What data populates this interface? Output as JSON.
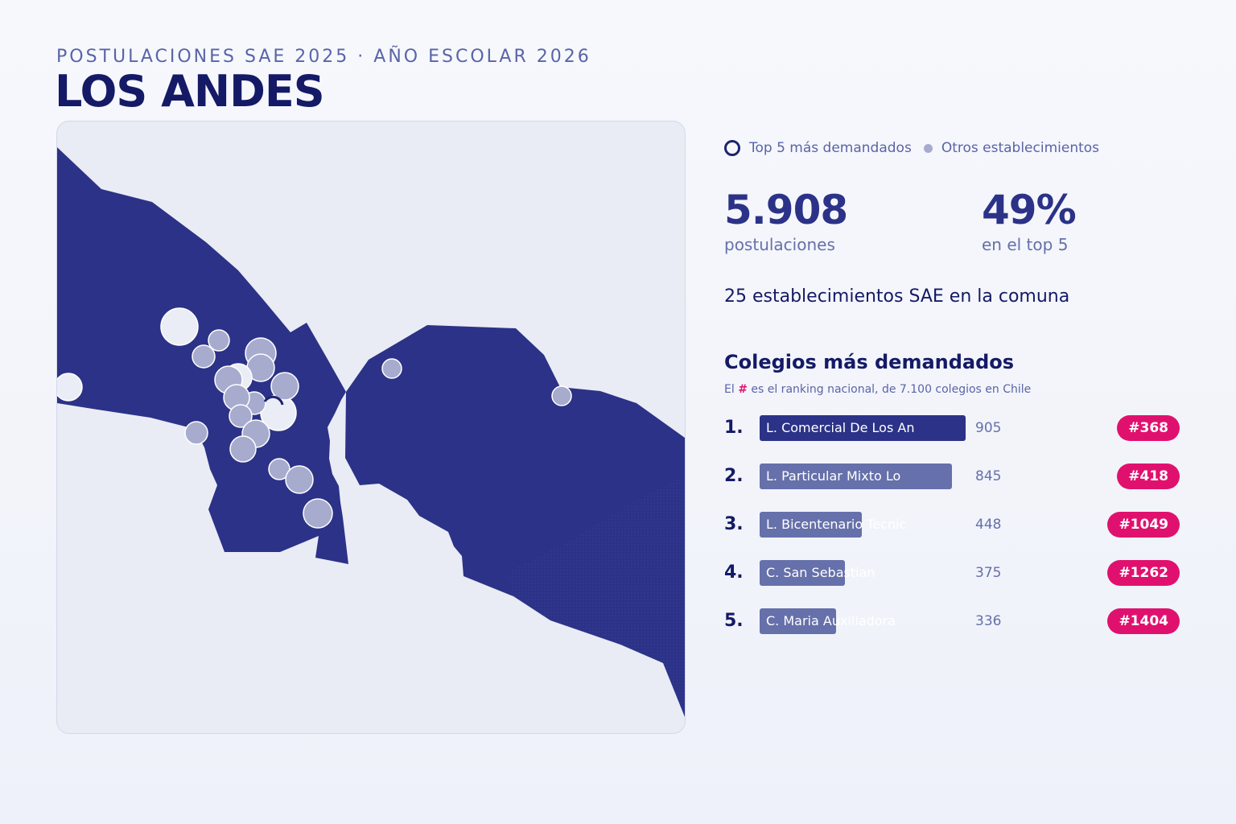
{
  "header": {
    "kicker": "POSTULACIONES SAE 2025 · AÑO ESCOLAR 2026",
    "title": "LOS ANDES"
  },
  "legend": {
    "top5_label": "Top 5 más demandados",
    "others_label": "Otros establecimientos"
  },
  "stats": {
    "postulaciones_value": "5.908",
    "postulaciones_label": "postulaciones",
    "top5_share_value": "49%",
    "top5_share_label": "en el top 5",
    "establecimientos_text": "25 establecimientos SAE en la comuna"
  },
  "ranking": {
    "title": "Colegios más demandados",
    "note_prefix": "El ",
    "note_hash": "#",
    "note_suffix": " es el ranking nacional, de 7.100 colegios en Chile",
    "items": [
      {
        "rank": "1.",
        "name": "L. Comercial De Los An",
        "value": 905,
        "national_rank": "#368"
      },
      {
        "rank": "2.",
        "name": "L. Particular Mixto Lo",
        "value": 845,
        "national_rank": "#418"
      },
      {
        "rank": "3.",
        "name": "L. Bicentenario Tecnic",
        "value": 448,
        "national_rank": "#1049"
      },
      {
        "rank": "4.",
        "name": "C. San Sebastian",
        "value": 375,
        "national_rank": "#1262"
      },
      {
        "rank": "5.",
        "name": "C. Maria Auxiliadora",
        "value": 336,
        "national_rank": "#1404"
      }
    ]
  },
  "colors": {
    "region_fill": "#2b3287",
    "accent": "#e0116e",
    "title": "#141a66",
    "muted": "#5a64a8",
    "other_school": "#a7acce"
  }
}
